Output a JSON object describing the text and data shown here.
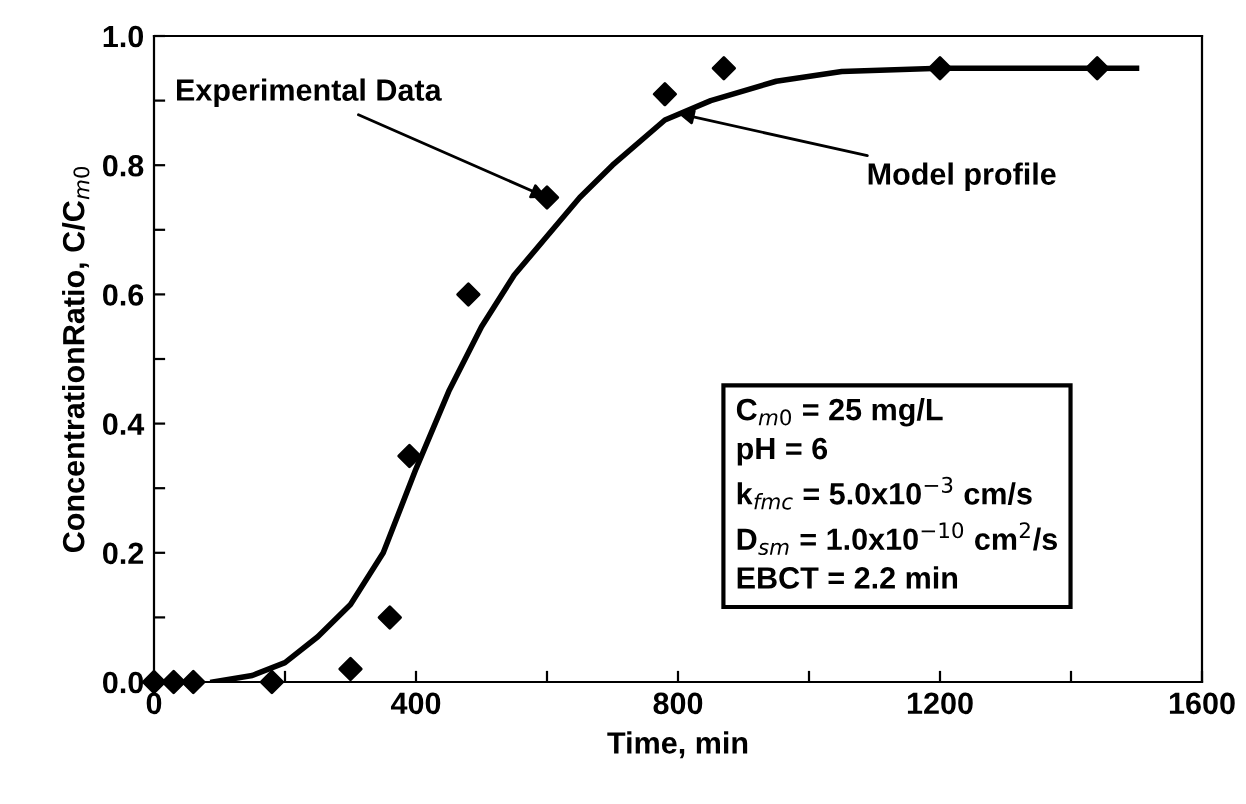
{
  "chart_data": {
    "type": "scatter",
    "xlabel": "Time, min",
    "ylabel": "ConcentrationRatio, C/C$_{m0}$",
    "series": [
      {
        "color": "#000000",
        "marker": "diamond",
        "x": [
          0,
          30,
          60,
          180,
          300,
          360,
          390,
          480,
          600,
          780,
          870,
          1200,
          1440
        ],
        "values": [
          0,
          0,
          0,
          0,
          0.02,
          0.1,
          0.35,
          0.6,
          0.75,
          0.91,
          0.95,
          0.95,
          0.95
        ]
      },
      {
        "type": "line",
        "color": "#000000",
        "marker": "none",
        "line_style": "solid",
        "x": [
          90,
          150,
          200,
          250,
          300,
          350,
          400,
          450,
          500,
          550,
          600,
          650,
          700,
          780,
          850,
          950,
          1050,
          1200,
          1500
        ],
        "values": [
          0,
          0.01,
          0.03,
          0.07,
          0.12,
          0.2,
          0.33,
          0.45,
          0.55,
          0.63,
          0.69,
          0.75,
          0.8,
          0.87,
          0.9,
          0.93,
          0.945,
          0.95,
          0.95
        ]
      }
    ],
    "annotations": [
      {
        "text": "Experimental Data",
        "x": 600,
        "y": 0.75
      },
      {
        "text": "Model profile",
        "x": 800,
        "y": 0.88
      },
      "C$_{m0}$ = 25 mg/L\npH = 6\nk$_{fmc}$ = 5.0x10$^{−3}$ cm/s\nD$_{sm}$ = 1.0x10$^{−10}$ cm$^{2}$/s\nEBCT = 2.2 min"
    ],
    "xlim": [
      0,
      1600
    ],
    "xticks": [
      0,
      {
        "value": 200,
        "label": null
      },
      400,
      {
        "value": 600,
        "label": null
      },
      800,
      {
        "value": 1000,
        "label": null
      },
      1200,
      {
        "value": 1400,
        "label": null
      },
      1600
    ],
    "ylim": [
      0,
      1.0
    ],
    "yticks": [
      {
        "value": 0,
        "label": "0.0"
      },
      {
        "value": 0.1,
        "label": null
      },
      0.2,
      {
        "value": 0.3,
        "label": null
      },
      0.4,
      {
        "value": 0.5,
        "label": null
      },
      0.6,
      {
        "value": 0.7,
        "label": null
      },
      0.8,
      {
        "value": 0.9,
        "label": null
      },
      {
        "value": 1.0,
        "label": "1.0"
      }
    ],
    "grid": false,
    "legend": false
  }
}
